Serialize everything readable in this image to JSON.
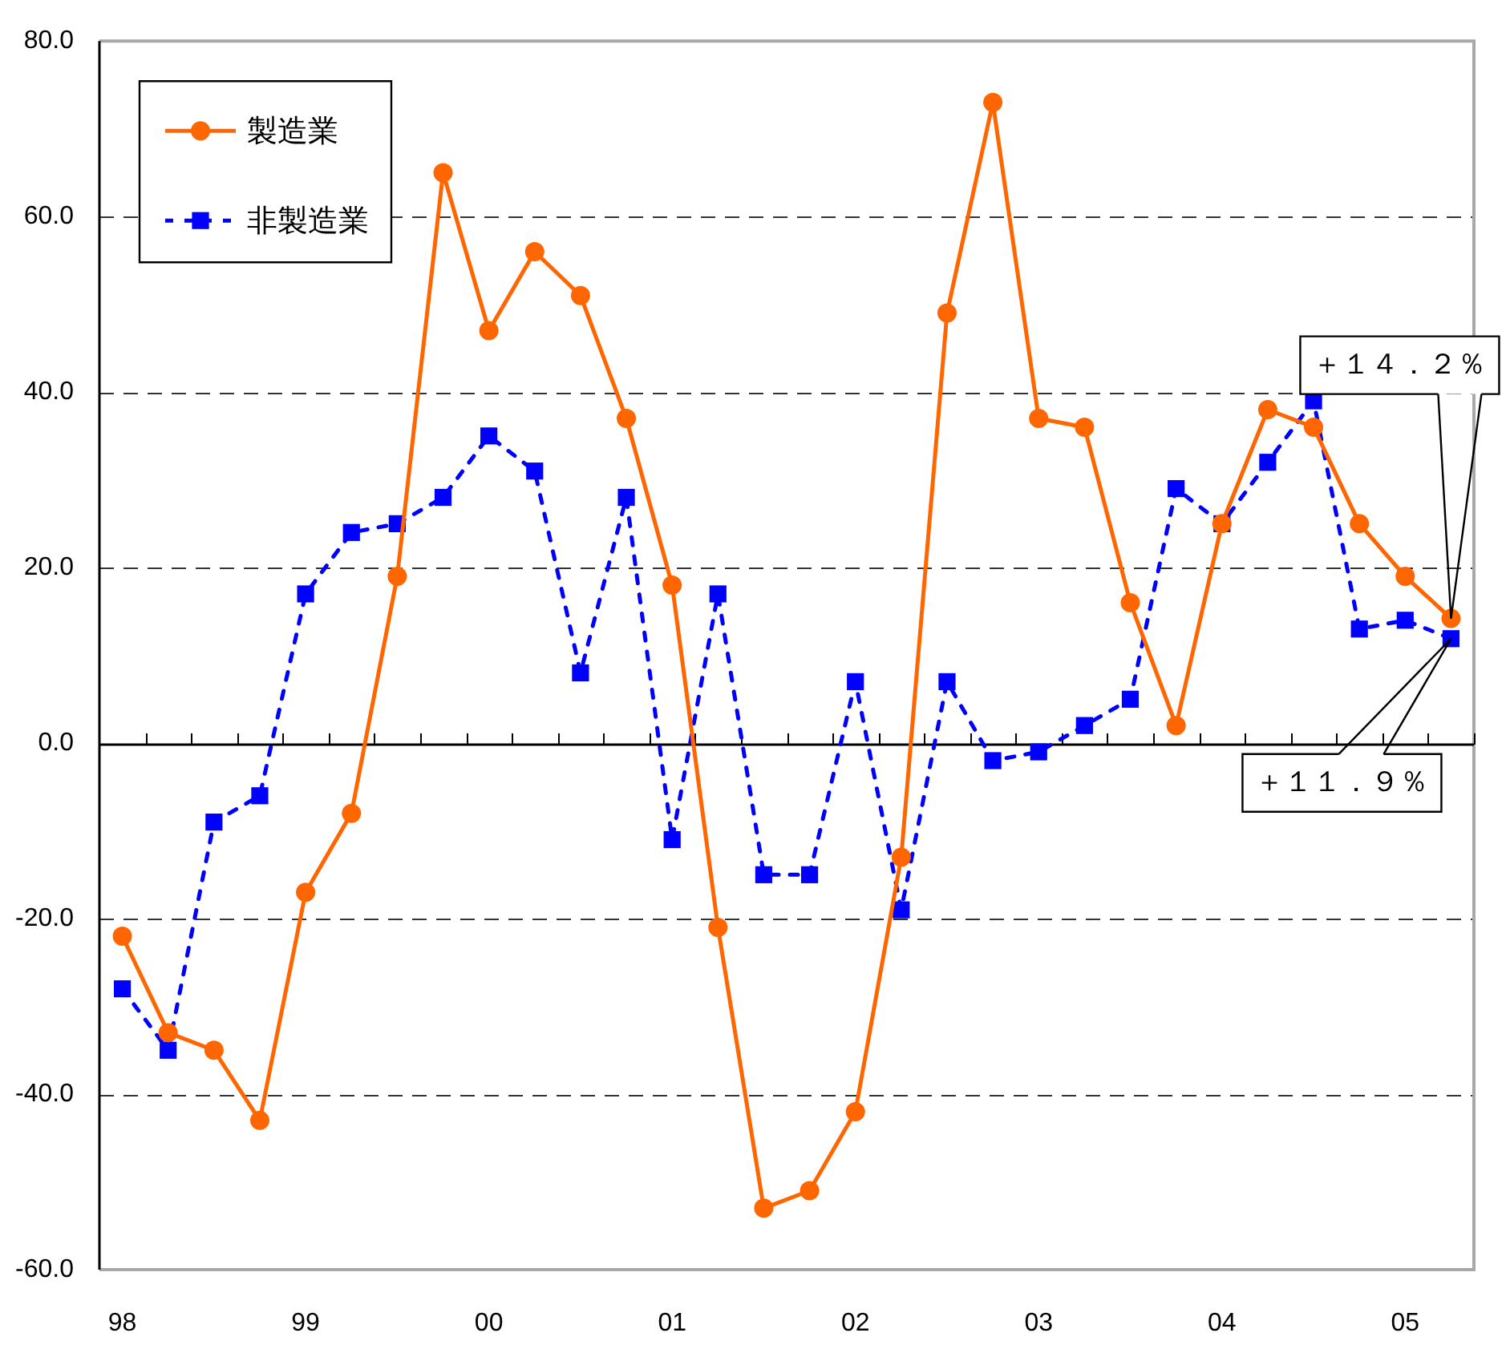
{
  "chart_data": {
    "type": "line",
    "x": [
      1998,
      1998.25,
      1998.5,
      1998.75,
      1999,
      1999.25,
      1999.5,
      1999.75,
      2000,
      2000.25,
      2000.5,
      2000.75,
      2001,
      2001.25,
      2001.5,
      2001.75,
      2002,
      2002.25,
      2002.5,
      2002.75,
      2003,
      2003.25,
      2003.5,
      2003.75,
      2004,
      2004.25,
      2004.5,
      2004.75,
      2005,
      2005.25
    ],
    "series": [
      {
        "name": "製造業",
        "color": "#ff6600",
        "marker": "circle",
        "line_style": "solid",
        "values": [
          -22,
          -33,
          -35,
          -43,
          -17,
          -8,
          19,
          65,
          47,
          56,
          51,
          37,
          18,
          -21,
          -53,
          -51,
          -42,
          -13,
          49,
          73,
          37,
          36,
          16,
          2,
          25,
          38,
          36,
          25,
          19,
          14.2
        ]
      },
      {
        "name": "非製造業",
        "color": "#0000ff",
        "marker": "square",
        "line_style": "dotted",
        "values": [
          -28,
          -35,
          -9,
          -6,
          17,
          24,
          25,
          28,
          35,
          31,
          8,
          28,
          -11,
          17,
          -15,
          -15,
          7,
          -19,
          7,
          -2,
          -1,
          2,
          5,
          29,
          25,
          32,
          39,
          13,
          14,
          11.9
        ]
      }
    ],
    "annotations": [
      {
        "text": "＋１４．２％",
        "x": 2005.25,
        "y": 14.2
      },
      {
        "text": "＋１１．９％",
        "x": 2005.25,
        "y": 11.9
      }
    ],
    "xlim": [
      1997.875,
      2005.375
    ],
    "xticks": [
      {
        "value": 1998,
        "label": "98"
      },
      {
        "value": 1999,
        "label": "99"
      },
      {
        "value": 2000,
        "label": "00"
      },
      {
        "value": 2001,
        "label": "01"
      },
      {
        "value": 2002,
        "label": "02"
      },
      {
        "value": 2003,
        "label": "03"
      },
      {
        "value": 2004,
        "label": "04"
      },
      {
        "value": 2005,
        "label": "05"
      },
      {
        "value": 1998.125,
        "label": null
      },
      {
        "value": 1998.375,
        "label": null
      },
      {
        "value": 1998.625,
        "label": null
      },
      {
        "value": 1998.875,
        "label": null
      },
      {
        "value": 1999.125,
        "label": null
      },
      {
        "value": 1999.375,
        "label": null
      },
      {
        "value": 1999.625,
        "label": null
      },
      {
        "value": 1999.875,
        "label": null
      },
      {
        "value": 2000.125,
        "label": null
      },
      {
        "value": 2000.375,
        "label": null
      },
      {
        "value": 2000.625,
        "label": null
      },
      {
        "value": 2000.875,
        "label": null
      },
      {
        "value": 2001.125,
        "label": null
      },
      {
        "value": 2001.375,
        "label": null
      },
      {
        "value": 2001.625,
        "label": null
      },
      {
        "value": 2001.875,
        "label": null
      },
      {
        "value": 2002.125,
        "label": null
      },
      {
        "value": 2002.375,
        "label": null
      },
      {
        "value": 2002.625,
        "label": null
      },
      {
        "value": 2002.875,
        "label": null
      },
      {
        "value": 2003.125,
        "label": null
      },
      {
        "value": 2003.375,
        "label": null
      },
      {
        "value": 2003.625,
        "label": null
      },
      {
        "value": 2003.875,
        "label": null
      },
      {
        "value": 2004.125,
        "label": null
      },
      {
        "value": 2004.375,
        "label": null
      },
      {
        "value": 2004.625,
        "label": null
      },
      {
        "value": 2004.875,
        "label": null
      },
      {
        "value": 2005.125,
        "label": null
      },
      {
        "value": 2005.375,
        "label": null
      }
    ],
    "ylim": [
      -60,
      80
    ],
    "yticks": [
      {
        "value": -60,
        "label": "-60.0"
      },
      {
        "value": -40,
        "label": "-40.0"
      },
      {
        "value": -20,
        "label": "-20.0"
      },
      {
        "value": 0,
        "label": "0.0"
      },
      {
        "value": 20,
        "label": "20.0"
      },
      {
        "value": 40,
        "label": "40.0"
      },
      {
        "value": 60,
        "label": "60.0"
      },
      {
        "value": 80,
        "label": "80.0"
      }
    ],
    "grid": "y",
    "legend": "top left"
  }
}
